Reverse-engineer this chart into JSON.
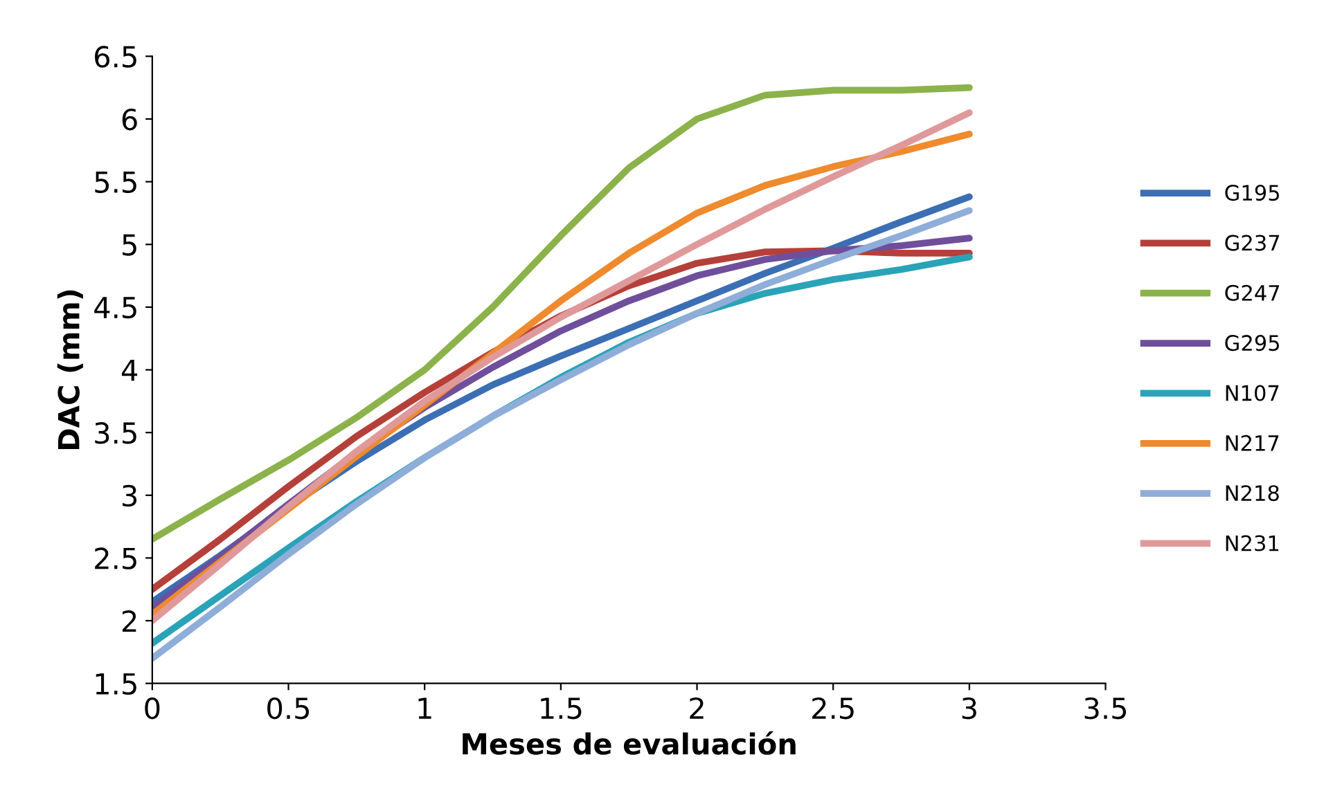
{
  "chart_data": {
    "type": "line",
    "xlabel": "Meses de evaluación",
    "ylabel": "DAC (mm)",
    "x": [
      0,
      0.25,
      0.5,
      0.75,
      1,
      1.25,
      1.5,
      1.75,
      2,
      2.25,
      2.5,
      2.75,
      3
    ],
    "series": [
      {
        "name": "G195",
        "color": "#3c6eb4",
        "values": [
          2.15,
          2.52,
          2.91,
          3.27,
          3.6,
          3.88,
          4.11,
          4.33,
          4.55,
          4.77,
          4.97,
          5.18,
          5.38
        ]
      },
      {
        "name": "G237",
        "color": "#b5403a",
        "values": [
          2.25,
          2.65,
          3.07,
          3.47,
          3.82,
          4.14,
          4.43,
          4.67,
          4.85,
          4.94,
          4.95,
          4.93,
          4.93
        ]
      },
      {
        "name": "G247",
        "color": "#8cb24b",
        "values": [
          2.65,
          2.97,
          3.28,
          3.62,
          4.0,
          4.5,
          5.07,
          5.61,
          6.0,
          6.19,
          6.23,
          6.23,
          6.25
        ]
      },
      {
        "name": "G295",
        "color": "#6f4f9c",
        "values": [
          2.1,
          2.51,
          2.93,
          3.34,
          3.7,
          4.02,
          4.31,
          4.55,
          4.75,
          4.88,
          4.95,
          4.99,
          5.05
        ]
      },
      {
        "name": "N107",
        "color": "#2aa3b8",
        "values": [
          1.82,
          2.2,
          2.58,
          2.95,
          3.3,
          3.63,
          3.94,
          4.22,
          4.45,
          4.61,
          4.72,
          4.8,
          4.9
        ]
      },
      {
        "name": "N217",
        "color": "#ef8a2e",
        "values": [
          2.05,
          2.47,
          2.89,
          3.31,
          3.72,
          4.13,
          4.55,
          4.93,
          5.25,
          5.47,
          5.62,
          5.74,
          5.88
        ]
      },
      {
        "name": "N218",
        "color": "#8fadd9",
        "values": [
          1.7,
          2.11,
          2.53,
          2.93,
          3.3,
          3.63,
          3.92,
          4.2,
          4.45,
          4.68,
          4.88,
          5.07,
          5.27
        ]
      },
      {
        "name": "N231",
        "color": "#e0999a",
        "values": [
          2.0,
          2.45,
          2.91,
          3.35,
          3.75,
          4.1,
          4.42,
          4.71,
          5.0,
          5.28,
          5.54,
          5.79,
          6.05
        ]
      }
    ],
    "xlim": [
      0,
      3.5
    ],
    "xticks": [
      0,
      0.5,
      1,
      1.5,
      2,
      2.5,
      3,
      3.5
    ],
    "ylim": [
      1.5,
      6.5
    ],
    "yticks": [
      1.5,
      2,
      2.5,
      3,
      3.5,
      4,
      4.5,
      5,
      5.5,
      6,
      6.5
    ],
    "grid": false,
    "legend": "right",
    "marker": "none",
    "line_style": "solid"
  }
}
